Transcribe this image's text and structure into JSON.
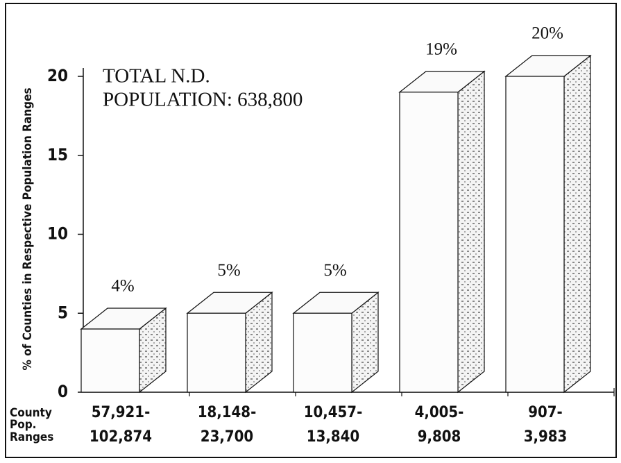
{
  "chart_data": {
    "type": "bar3d",
    "annotation": [
      "TOTAL N.D.",
      "POPULATION: 638,800"
    ],
    "ylabel": "% of Counties in Respective Population Ranges",
    "xlabel": [
      "County",
      "Pop.",
      "Ranges"
    ],
    "categories": [
      [
        "57,921-",
        "102,874"
      ],
      [
        "18,148-",
        "23,700"
      ],
      [
        "10,457-",
        "13,840"
      ],
      [
        "4,005-",
        "9,808"
      ],
      [
        "907-",
        "3,983"
      ]
    ],
    "values": [
      4,
      5,
      5,
      19,
      20
    ],
    "value_labels": [
      "4%",
      "5%",
      "5%",
      "19%",
      "20%"
    ],
    "ylim": [
      0,
      20
    ],
    "yticks": [
      0,
      5,
      10,
      15,
      20
    ]
  }
}
